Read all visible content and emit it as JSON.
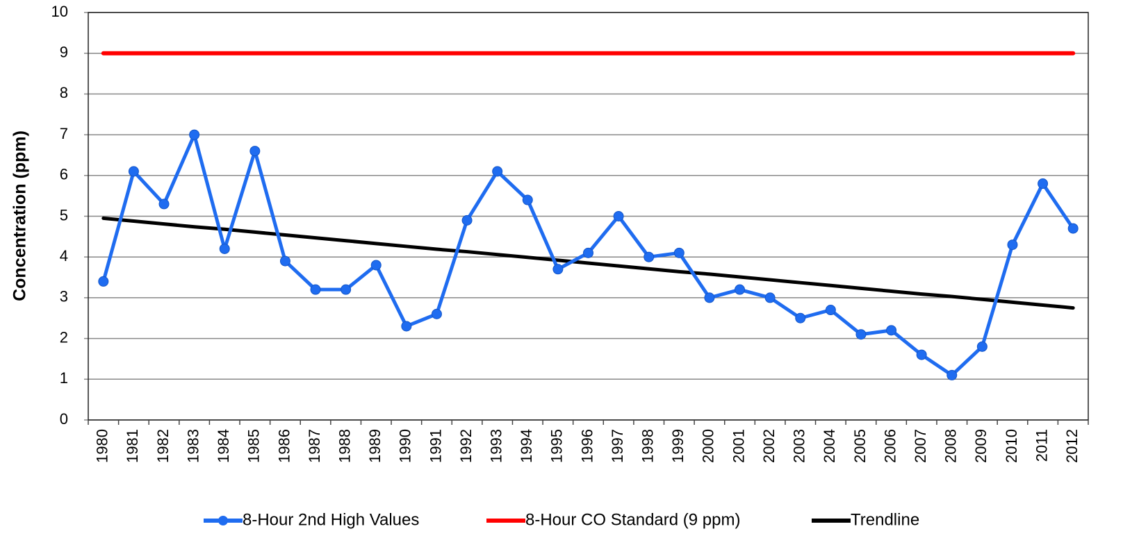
{
  "chart_data": {
    "type": "line",
    "y_label": "Concentration (ppm)",
    "categories": [
      "1980",
      "1981",
      "1982",
      "1983",
      "1984",
      "1985",
      "1986",
      "1987",
      "1988",
      "1989",
      "1990",
      "1991",
      "1992",
      "1993",
      "1994",
      "1995",
      "1996",
      "1997",
      "1998",
      "1999",
      "2000",
      "2001",
      "2002",
      "2003",
      "2004",
      "2005",
      "2006",
      "2007",
      "2008",
      "2009",
      "2010",
      "2011",
      "2012"
    ],
    "series": [
      {
        "name": "8-Hour 2nd High Values",
        "color": "#1f6cf0",
        "markers": true,
        "values": [
          3.4,
          6.1,
          5.3,
          7.0,
          4.2,
          6.6,
          3.9,
          3.2,
          3.2,
          3.8,
          2.3,
          2.6,
          4.9,
          6.1,
          5.4,
          3.7,
          4.1,
          5.0,
          4.0,
          4.1,
          3.0,
          3.2,
          3.0,
          2.5,
          2.7,
          2.1,
          2.2,
          1.6,
          1.1,
          1.8,
          4.3,
          5.8,
          4.7
        ]
      },
      {
        "name": "8-Hour CO Standard (9 ppm)",
        "color": "#ff0000",
        "markers": false,
        "values": [
          9,
          9,
          9,
          9,
          9,
          9,
          9,
          9,
          9,
          9,
          9,
          9,
          9,
          9,
          9,
          9,
          9,
          9,
          9,
          9,
          9,
          9,
          9,
          9,
          9,
          9,
          9,
          9,
          9,
          9,
          9,
          9,
          9
        ]
      },
      {
        "name": "Trendline",
        "color": "#000000",
        "markers": false,
        "values": [
          4.95,
          4.88,
          4.81,
          4.74,
          4.68,
          4.61,
          4.54,
          4.47,
          4.4,
          4.33,
          4.26,
          4.19,
          4.13,
          4.06,
          3.99,
          3.92,
          3.85,
          3.78,
          3.71,
          3.64,
          3.58,
          3.51,
          3.44,
          3.37,
          3.3,
          3.23,
          3.16,
          3.09,
          3.03,
          2.96,
          2.89,
          2.82,
          2.75
        ]
      }
    ],
    "ylim": [
      0,
      10
    ],
    "yticks": [
      0,
      1,
      2,
      3,
      4,
      5,
      6,
      7,
      8,
      9,
      10
    ],
    "grid": true,
    "legend": "bottom"
  }
}
